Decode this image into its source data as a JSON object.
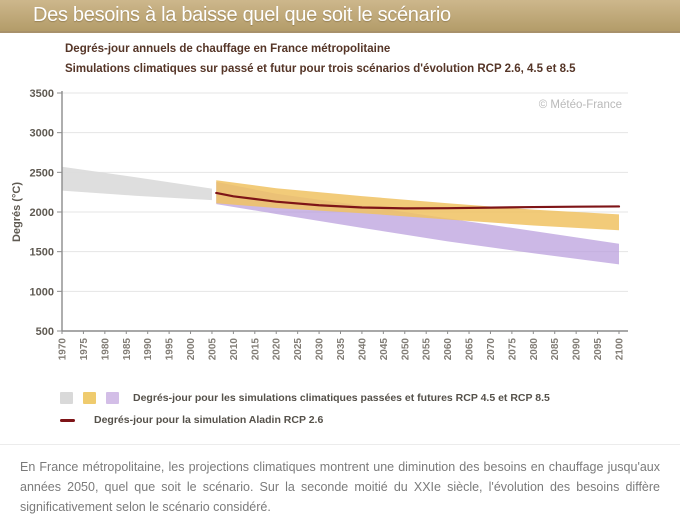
{
  "banner": {
    "title": "Des besoins à la baisse quel que soit le scénario"
  },
  "footer": {
    "text": "En France métropolitaine, les projections climatiques montrent une diminution des besoins en chauffage jusqu'aux années 2050, quel que soit le scénario. Sur la seconde moitié du XXIe siècle, l'évolution des besoins diffère significativement selon le scénario considéré."
  },
  "chart_data": {
    "type": "area",
    "title": "Degrés-jour annuels de chauffage en France métropolitaine",
    "subtitle": "Simulations climatiques sur passé et futur pour trois scénarios d'évolution RCP 2.6, 4.5 et 8.5",
    "ylabel": "Degrés (°C)",
    "watermark": "© Météo-France",
    "xlim": [
      1970,
      2100
    ],
    "ylim": [
      500,
      3500
    ],
    "grid": "horizontal",
    "legend_position": "bottom-left",
    "xticks": [
      1970,
      1975,
      1980,
      1985,
      1990,
      1995,
      2000,
      2005,
      2010,
      2015,
      2020,
      2025,
      2030,
      2035,
      2040,
      2045,
      2050,
      2055,
      2060,
      2065,
      2070,
      2075,
      2080,
      2085,
      2090,
      2095,
      2100
    ],
    "yticks": [
      500,
      1000,
      1500,
      2000,
      2500,
      3000,
      3500
    ],
    "series": [
      {
        "name": "simulations-passees-band",
        "type": "band",
        "color": "#dcdcdc",
        "opacity": 0.95,
        "x": [
          1970,
          1987,
          2005
        ],
        "upper": [
          2570,
          2440,
          2295
        ],
        "lower": [
          2270,
          2205,
          2150
        ]
      },
      {
        "name": "rcp85-band",
        "type": "band",
        "color": "#b89ddd",
        "opacity": 0.72,
        "x": [
          2006,
          2020,
          2040,
          2060,
          2080,
          2100
        ],
        "upper": [
          2380,
          2230,
          2080,
          1920,
          1760,
          1600
        ],
        "lower": [
          2100,
          1975,
          1800,
          1630,
          1480,
          1340
        ]
      },
      {
        "name": "rcp45-band",
        "type": "band",
        "color": "#f0c261",
        "opacity": 0.85,
        "x": [
          2006,
          2020,
          2040,
          2060,
          2080,
          2100
        ],
        "upper": [
          2400,
          2300,
          2200,
          2110,
          2030,
          1970
        ],
        "lower": [
          2110,
          2050,
          1985,
          1905,
          1830,
          1770
        ]
      },
      {
        "name": "aladin-rcp26-line",
        "type": "line",
        "color": "#7e1417",
        "width": 2.2,
        "x": [
          2006,
          2010,
          2020,
          2030,
          2040,
          2050,
          2060,
          2070,
          2080,
          2090,
          2100
        ],
        "y": [
          2240,
          2198,
          2130,
          2085,
          2057,
          2046,
          2048,
          2055,
          2062,
          2067,
          2070
        ]
      }
    ],
    "legend": [
      {
        "swatches": [
          "#d9d9d9",
          "#efcb6e",
          "#d3bee7"
        ],
        "label": "Degrés-jour pour les simulations climatiques passées et futures RCP 4.5 et RCP 8.5"
      },
      {
        "line_color": "#7e1417",
        "label": "Degrés-jour pour la simulation Aladin RCP 2.6"
      }
    ]
  }
}
